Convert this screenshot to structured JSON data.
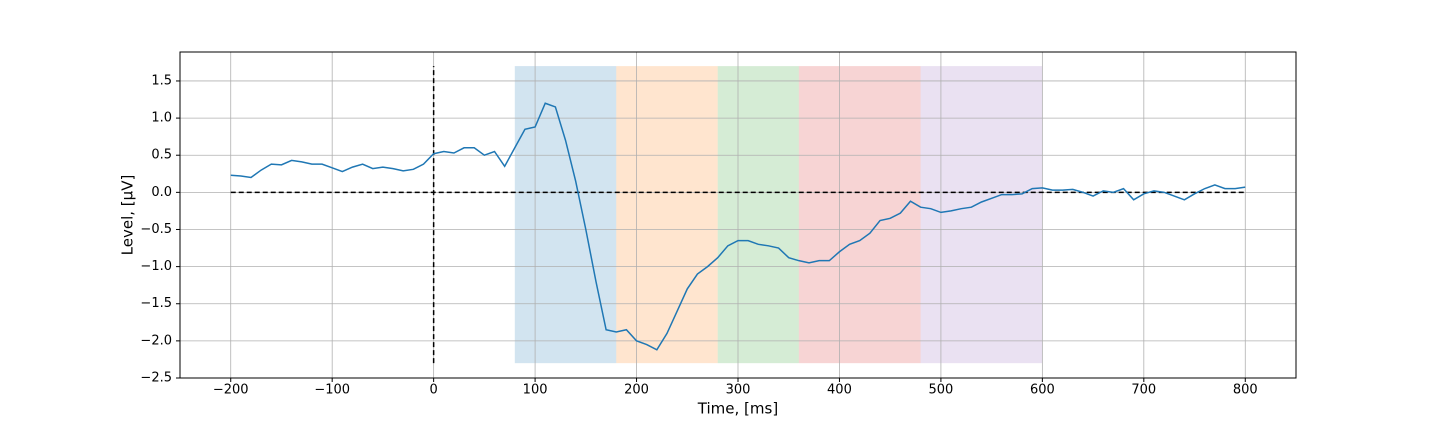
{
  "chart_data": {
    "type": "line",
    "xlabel": "Time, [ms]",
    "ylabel": "Level, [μV]",
    "xlim": [
      -250,
      850
    ],
    "ylim": [
      -2.5,
      1.89
    ],
    "xticks": [
      {
        "value": -200,
        "label": "−200"
      },
      {
        "value": -100,
        "label": "−100"
      },
      0,
      100,
      200,
      300,
      400,
      500,
      600,
      700,
      800
    ],
    "yticks": [
      {
        "value": -2.5,
        "label": "−2.5"
      },
      {
        "value": -2.0,
        "label": "−2.0"
      },
      {
        "value": -1.5,
        "label": "−1.5"
      },
      {
        "value": -1.0,
        "label": "−1.0"
      },
      {
        "value": -0.5,
        "label": "−0.5"
      },
      {
        "value": 0,
        "label": "0.0"
      },
      0.5,
      {
        "value": 1.0,
        "label": "1.0"
      },
      1.5
    ],
    "grid": true,
    "spans": [
      {
        "x0": 80,
        "x1": 180,
        "color": "#1f77b4"
      },
      {
        "x0": 180,
        "x1": 280,
        "color": "#ff7f0e"
      },
      {
        "x0": 280,
        "x1": 360,
        "color": "#2ca02c"
      },
      {
        "x0": 360,
        "x1": 480,
        "color": "#d62728"
      },
      {
        "x0": 480,
        "x1": 600,
        "color": "#9467bd"
      }
    ],
    "span_ylim": [
      -2.3,
      1.7
    ],
    "span_alpha": 0.2,
    "hlines": [
      {
        "y": 0,
        "xmin": -200,
        "xmax": 800
      }
    ],
    "vlines": [
      {
        "x": 0,
        "ymin": -2.3,
        "ymax": 1.7
      }
    ],
    "x": [
      -200,
      -190,
      -180,
      -170,
      -160,
      -150,
      -140,
      -130,
      -120,
      -110,
      -100,
      -90,
      -80,
      -70,
      -60,
      -50,
      -40,
      -30,
      -20,
      -10,
      0,
      10,
      20,
      30,
      40,
      50,
      60,
      70,
      80,
      90,
      100,
      110,
      120,
      130,
      140,
      150,
      160,
      170,
      180,
      190,
      200,
      210,
      220,
      230,
      240,
      250,
      260,
      270,
      280,
      290,
      300,
      310,
      320,
      330,
      340,
      350,
      360,
      370,
      380,
      390,
      400,
      410,
      420,
      430,
      440,
      450,
      460,
      470,
      480,
      490,
      500,
      510,
      520,
      530,
      540,
      550,
      560,
      570,
      580,
      590,
      600,
      610,
      620,
      630,
      640,
      650,
      660,
      670,
      680,
      690,
      700,
      710,
      720,
      730,
      740,
      750,
      760,
      770,
      780,
      790,
      800
    ],
    "series": [
      {
        "color": "#1f77b4",
        "values": [
          0.23,
          0.22,
          0.2,
          0.3,
          0.38,
          0.37,
          0.43,
          0.41,
          0.38,
          0.38,
          0.33,
          0.28,
          0.34,
          0.38,
          0.32,
          0.34,
          0.32,
          0.29,
          0.31,
          0.38,
          0.52,
          0.55,
          0.53,
          0.6,
          0.6,
          0.5,
          0.55,
          0.35,
          0.6,
          0.85,
          0.88,
          1.2,
          1.15,
          0.7,
          0.15,
          -0.5,
          -1.2,
          -1.85,
          -1.88,
          -1.85,
          -2.0,
          -2.05,
          -2.12,
          -1.9,
          -1.6,
          -1.3,
          -1.1,
          -1.0,
          -0.88,
          -0.72,
          -0.65,
          -0.65,
          -0.7,
          -0.72,
          -0.75,
          -0.88,
          -0.92,
          -0.95,
          -0.92,
          -0.92,
          -0.8,
          -0.7,
          -0.65,
          -0.55,
          -0.38,
          -0.35,
          -0.28,
          -0.12,
          -0.2,
          -0.22,
          -0.27,
          -0.25,
          -0.22,
          -0.2,
          -0.13,
          -0.08,
          -0.03,
          -0.03,
          -0.02,
          0.05,
          0.06,
          0.03,
          0.03,
          0.04,
          0.0,
          -0.05,
          0.02,
          0.0,
          0.05,
          -0.1,
          -0.02,
          0.02,
          0.0,
          -0.05,
          -0.1,
          -0.02,
          0.05,
          0.1,
          0.05,
          0.05,
          0.07
        ]
      }
    ]
  }
}
